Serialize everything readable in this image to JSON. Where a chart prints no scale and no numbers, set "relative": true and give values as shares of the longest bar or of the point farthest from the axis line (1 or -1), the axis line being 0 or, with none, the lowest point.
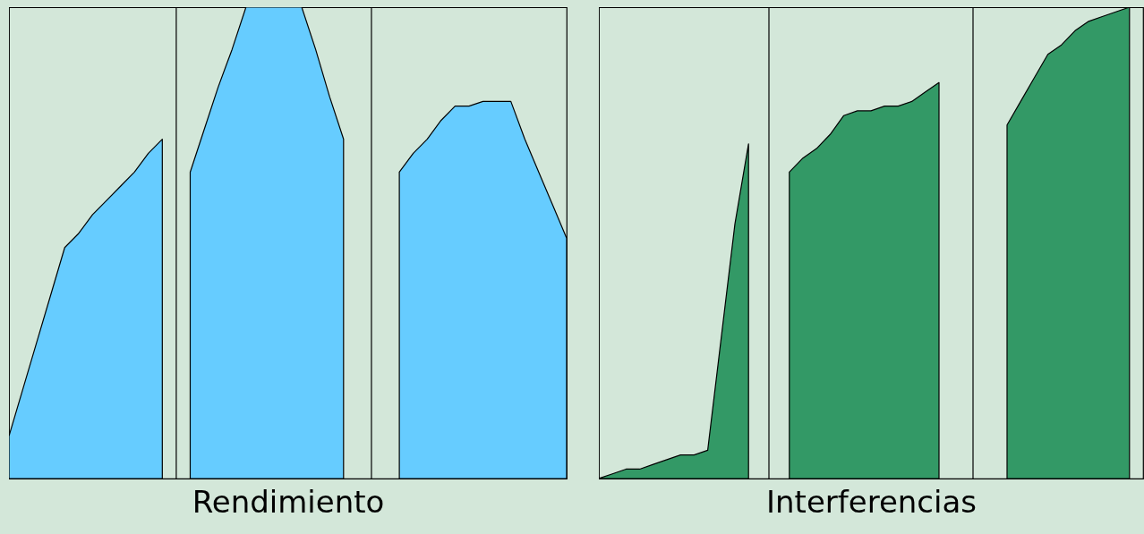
{
  "chart_data": [
    {
      "type": "area",
      "relative": true,
      "xlabel": "Rendimiento",
      "categories": [
        null,
        null,
        null,
        null,
        null,
        null,
        null,
        null,
        null,
        null,
        null,
        null,
        null,
        null,
        null,
        null,
        null,
        null,
        null,
        null,
        null,
        null,
        null,
        null,
        null,
        null,
        null,
        null,
        null,
        null,
        null,
        null,
        null,
        null,
        null,
        null,
        null,
        null,
        null,
        null,
        null
      ],
      "series": [
        {
          "color": "#66ccff",
          "values": [
            0.09,
            0.19,
            0.29,
            0.39,
            0.49,
            0.52,
            0.56,
            0.59,
            0.62,
            0.65,
            0.69,
            0.72,
            null,
            null,
            null,
            null,
            null,
            null,
            null,
            null,
            null,
            null,
            null,
            null,
            null,
            null,
            null,
            null,
            null,
            null,
            null,
            null,
            null,
            null,
            null,
            null,
            null,
            null,
            null,
            null,
            null
          ]
        },
        {
          "color": "#66ccff",
          "values": [
            null,
            null,
            null,
            null,
            null,
            null,
            null,
            null,
            null,
            null,
            null,
            null,
            null,
            0.65,
            0.74,
            0.83,
            0.91,
            1,
            1,
            1,
            1,
            1,
            0.91,
            0.81,
            0.72,
            null,
            null,
            null,
            null,
            null,
            null,
            null,
            null,
            null,
            null,
            null,
            null,
            null,
            null,
            null,
            null
          ]
        },
        {
          "color": "#66ccff",
          "values": [
            null,
            null,
            null,
            null,
            null,
            null,
            null,
            null,
            null,
            null,
            null,
            null,
            null,
            null,
            null,
            null,
            null,
            null,
            null,
            null,
            null,
            null,
            null,
            null,
            null,
            null,
            null,
            null,
            0.65,
            0.69,
            0.72,
            0.76,
            0.79,
            0.79,
            0.8,
            0.8,
            0.8,
            0.72,
            0.65,
            0.58,
            0.51
          ]
        }
      ],
      "stacked": false
    },
    {
      "type": "area",
      "relative": true,
      "xlabel": "Interferencias",
      "categories": [
        null,
        null,
        null,
        null,
        null,
        null,
        null,
        null,
        null,
        null,
        null,
        null,
        null,
        null,
        null,
        null,
        null,
        null,
        null,
        null,
        null,
        null,
        null,
        null,
        null,
        null,
        null,
        null,
        null,
        null,
        null,
        null,
        null,
        null,
        null,
        null,
        null,
        null,
        null,
        null,
        null
      ],
      "series": [
        {
          "color": "#339966",
          "values": [
            0,
            0.01,
            0.02,
            0.02,
            0.03,
            0.04,
            0.05,
            0.05,
            0.06,
            0.3,
            0.54,
            0.71,
            null,
            null,
            null,
            null,
            null,
            null,
            null,
            null,
            null,
            null,
            null,
            null,
            null,
            null,
            null,
            null,
            null,
            null,
            null,
            null,
            null,
            null,
            null,
            null,
            null,
            null,
            null,
            null,
            null
          ]
        },
        {
          "color": "#339966",
          "values": [
            null,
            null,
            null,
            null,
            null,
            null,
            null,
            null,
            null,
            null,
            null,
            null,
            null,
            null,
            0.65,
            0.68,
            0.7,
            0.73,
            0.77,
            0.78,
            0.78,
            0.79,
            0.79,
            0.8,
            0.82,
            0.84,
            null,
            null,
            null,
            null,
            null,
            null,
            null,
            null,
            null,
            null,
            null,
            null,
            null,
            null,
            null
          ]
        },
        {
          "color": "#339966",
          "values": [
            null,
            null,
            null,
            null,
            null,
            null,
            null,
            null,
            null,
            null,
            null,
            null,
            null,
            null,
            null,
            null,
            null,
            null,
            null,
            null,
            null,
            null,
            null,
            null,
            null,
            null,
            null,
            null,
            null,
            null,
            0.75,
            0.8,
            0.85,
            0.9,
            0.92,
            0.95,
            0.97,
            0.98,
            0.99,
            1,
            null
          ]
        }
      ],
      "stacked": false
    }
  ]
}
